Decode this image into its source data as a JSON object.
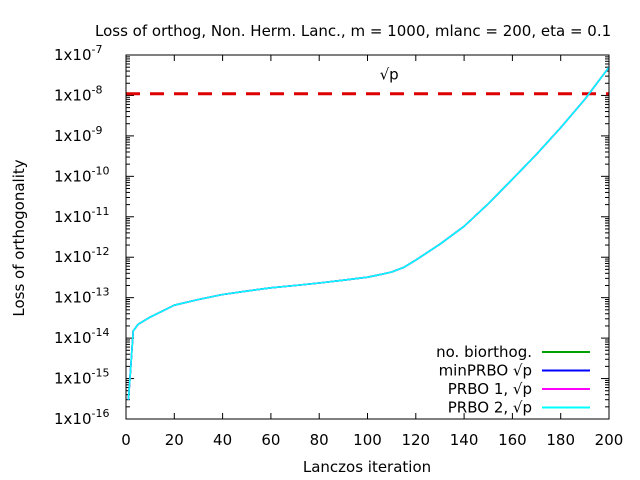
{
  "chart_data": {
    "type": "line",
    "title": "Loss of orthog, Non. Herm. Lanc., m = 1000, mlanc = 200, eta = 0.1",
    "xlabel": "Lanczos iteration",
    "ylabel": "Loss of orthogonality",
    "xlim": [
      0,
      200
    ],
    "ylim_log10": [
      -16,
      -7
    ],
    "yscale": "log",
    "grid": false,
    "legend_position": "bottom-right",
    "x_ticks": [
      0,
      20,
      40,
      60,
      80,
      100,
      120,
      140,
      160,
      180,
      200
    ],
    "y_ticks": [
      {
        "base": "1x10",
        "exp": "-7"
      },
      {
        "base": "1x10",
        "exp": "-8"
      },
      {
        "base": "1x10",
        "exp": "-9"
      },
      {
        "base": "1x10",
        "exp": "-10"
      },
      {
        "base": "1x10",
        "exp": "-11"
      },
      {
        "base": "1x10",
        "exp": "-12"
      },
      {
        "base": "1x10",
        "exp": "-13"
      },
      {
        "base": "1x10",
        "exp": "-14"
      },
      {
        "base": "1x10",
        "exp": "-15"
      },
      {
        "base": "1x10",
        "exp": "-16"
      }
    ],
    "annotation": {
      "text": "√p",
      "x": 105,
      "y": 2.5e-08
    },
    "threshold": {
      "value": 1.1e-08,
      "color": "#dd0000"
    },
    "x": [
      1,
      2,
      3,
      5,
      10,
      20,
      30,
      40,
      50,
      60,
      70,
      80,
      90,
      100,
      105,
      110,
      115,
      120,
      130,
      140,
      150,
      160,
      170,
      180,
      190,
      200
    ],
    "series": [
      {
        "name": "no. biorthog.",
        "color": "#00a000",
        "values": [
          3e-16,
          2e-15,
          1.5e-14,
          2.2e-14,
          3.3e-14,
          6.5e-14,
          9e-14,
          1.2e-13,
          1.45e-13,
          1.75e-13,
          2e-13,
          2.3e-13,
          2.7e-13,
          3.2e-13,
          3.7e-13,
          4.3e-13,
          5.6e-13,
          8.5e-13,
          2.1e-12,
          5.8e-12,
          2.1e-11,
          8.5e-11,
          3.5e-10,
          1.6e-09,
          8e-09,
          5e-08
        ]
      },
      {
        "name": "minPRBO √p",
        "color": "#0000ff",
        "values": [
          3e-16,
          2e-15,
          1.5e-14,
          2.2e-14,
          3.3e-14,
          6.5e-14,
          9e-14,
          1.2e-13,
          1.45e-13,
          1.75e-13,
          2e-13,
          2.3e-13,
          2.7e-13,
          3.2e-13,
          3.7e-13,
          4.3e-13,
          5.6e-13,
          8.5e-13,
          2.1e-12,
          5.8e-12,
          2.1e-11,
          8.5e-11,
          3.5e-10,
          1.6e-09,
          8e-09,
          5e-08
        ]
      },
      {
        "name": "PRBO 1, √p",
        "color": "#ff00ff",
        "values": [
          3e-16,
          2e-15,
          1.5e-14,
          2.2e-14,
          3.3e-14,
          6.5e-14,
          9e-14,
          1.2e-13,
          1.45e-13,
          1.75e-13,
          2e-13,
          2.3e-13,
          2.7e-13,
          3.2e-13,
          3.7e-13,
          4.3e-13,
          5.6e-13,
          8.5e-13,
          2.1e-12,
          5.8e-12,
          2.1e-11,
          8.5e-11,
          3.5e-10,
          1.6e-09,
          8e-09,
          5e-08
        ]
      },
      {
        "name": "PRBO 2, √p",
        "color": "#00ffff",
        "values": [
          3e-16,
          2e-15,
          1.5e-14,
          2.2e-14,
          3.3e-14,
          6.5e-14,
          9e-14,
          1.2e-13,
          1.45e-13,
          1.75e-13,
          2e-13,
          2.3e-13,
          2.7e-13,
          3.2e-13,
          3.7e-13,
          4.3e-13,
          5.6e-13,
          8.5e-13,
          2.1e-12,
          5.8e-12,
          2.1e-11,
          8.5e-11,
          3.5e-10,
          1.6e-09,
          8e-09,
          5e-08
        ]
      }
    ]
  }
}
